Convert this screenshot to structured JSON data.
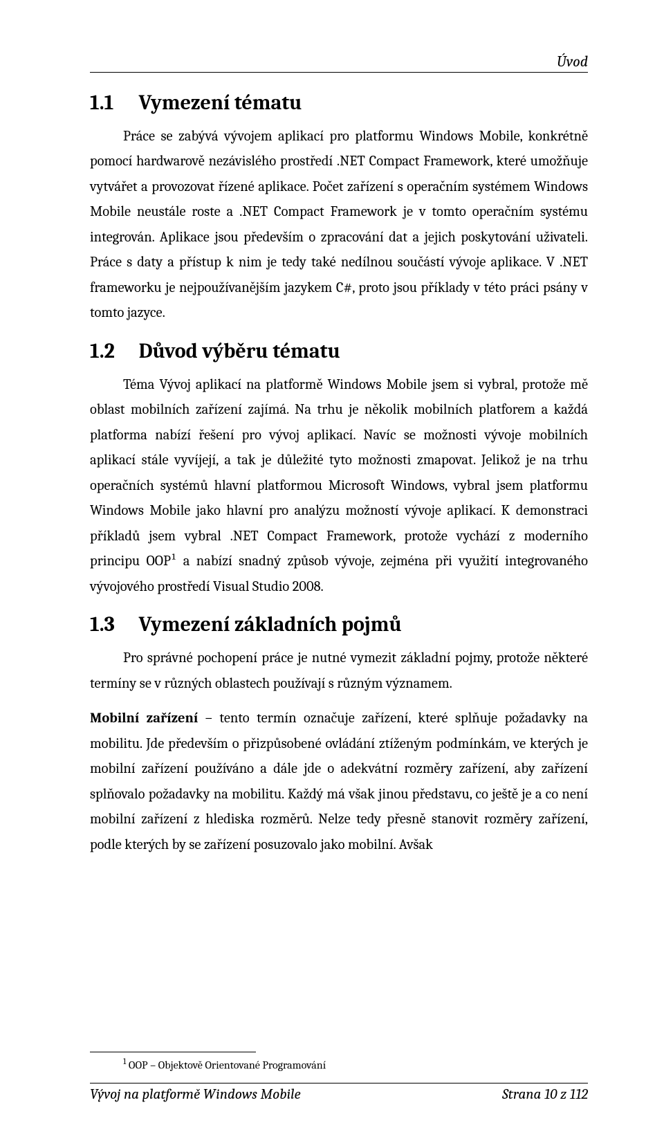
{
  "runningHead": "Úvod",
  "sections": [
    {
      "number": "1.1",
      "title": "Vymezení tématu",
      "paragraphs": [
        "Práce se zabývá vývojem aplikací pro platformu Windows Mobile, konkrétně pomocí hardwarově nezávislého prostředí .NET Compact Framework, které umožňuje vytvářet a provozovat řízené aplikace. Počet zařízení s operačním systémem Windows Mobile neustále roste a .NET Compact Framework je v tomto operačním systému integrován. Aplikace jsou především o zpracování dat a jejich poskytování uživateli. Práce s daty a přístup k nim je tedy také nedílnou součástí vývoje aplikace. V .NET frameworku je nejpoužívanějším jazykem C#, proto jsou příklady v této práci psány v tomto jazyce."
      ]
    },
    {
      "number": "1.2",
      "title": "Důvod výběru tématu",
      "paragraphs": [
        "Téma Vývoj aplikací na platformě Windows Mobile jsem si vybral, protože mě oblast mobilních zařízení zajímá. Na trhu je několik mobilních platforem a každá platforma nabízí řešení pro vývoj aplikací. Navíc se možnosti vývoje mobilních aplikací stále vyvíjejí, a tak je důležité tyto možnosti zmapovat. Jelikož je na trhu operačních systémů hlavní platformou Microsoft Windows, vybral jsem platformu Windows Mobile jako hlavní pro analýzu možností vývoje aplikací. K demonstraci příkladů jsem vybral .NET Compact Framework, protože vychází z moderního principu OOP¹ a nabízí snadný způsob vývoje, zejména při využití integrovaného vývojového prostředí Visual Studio 2008."
      ]
    },
    {
      "number": "1.3",
      "title": "Vymezení základních pojmů",
      "paragraphs": [
        "Pro správné pochopení práce je nutné vymezit základní pojmy, protože některé termíny se v různých oblastech  používají s různým významem."
      ],
      "definition": {
        "term": "Mobilní zařízení",
        "text": " – tento termín označuje zařízení, které splňuje požadavky na mobilitu. Jde především o přizpůsobené ovládání ztíženým podmínkám, ve kterých je mobilní zařízení používáno a dále jde o adekvátní rozměry zařízení, aby zařízení splňovalo požadavky na mobilitu. Každý má však jinou představu, co ještě je a co není mobilní zařízení z hlediska rozměrů. Nelze tedy přesně stanovit rozměry zařízení, podle kterých by se zařízení posuzovalo jako mobilní. Avšak"
      }
    }
  ],
  "footnote": {
    "marker": "1",
    "text": "OOP – Objektově Orientované Programování"
  },
  "footer": {
    "left": "Vývoj na platformě Windows Mobile",
    "right": "Strana 10 z 112"
  }
}
